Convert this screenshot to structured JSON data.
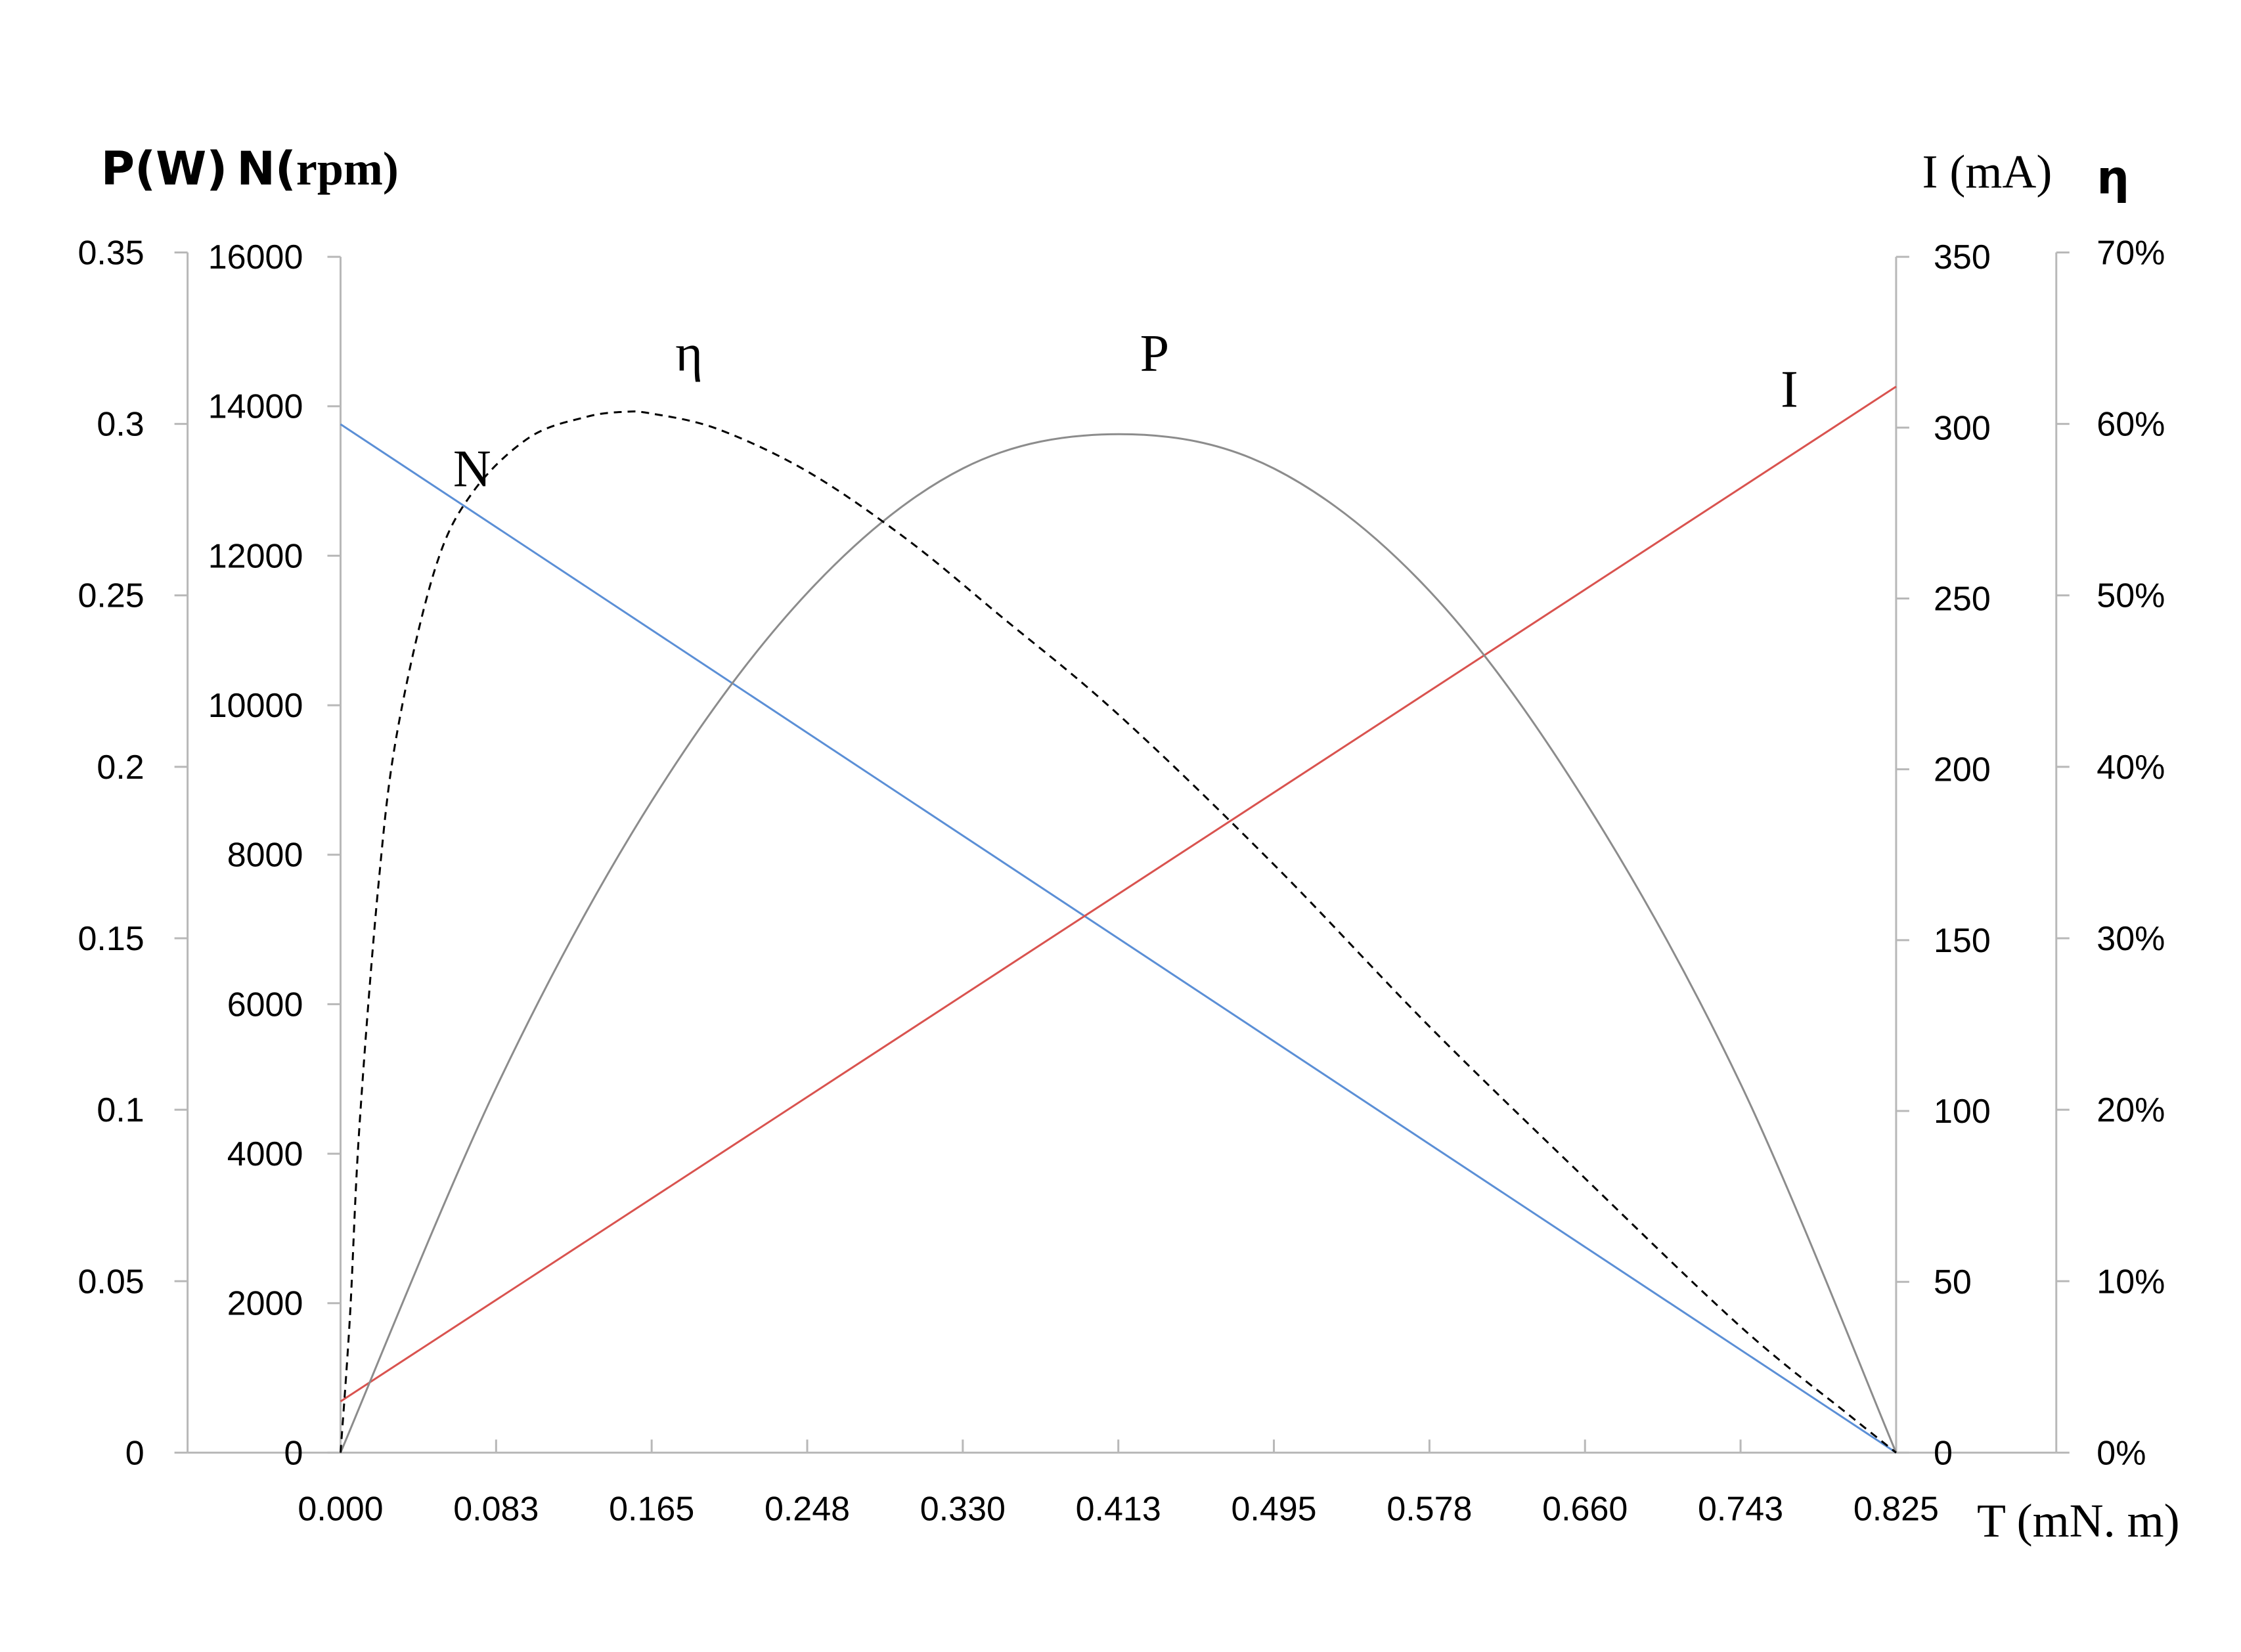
{
  "chart_data": {
    "type": "line",
    "top_partial_text": "...",
    "x_axis": {
      "label": "T (mN. m)",
      "ticks": [
        "0.000",
        "0.083",
        "0.165",
        "0.248",
        "0.330",
        "0.413",
        "0.495",
        "0.578",
        "0.660",
        "0.743",
        "0.825"
      ],
      "range": [
        0,
        0.825
      ]
    },
    "axes": {
      "power": {
        "label": "P(W)",
        "side": "left-outer",
        "range": [
          0,
          0.35
        ],
        "ticks": [
          "0.35",
          "0.3",
          "0.25",
          "0.2",
          "0.15",
          "0.1",
          "0.05",
          "0"
        ]
      },
      "speed": {
        "label_bold": "N(",
        "label_serif": "rpm)",
        "side": "left-inner",
        "range": [
          0,
          16000
        ],
        "ticks": [
          "16000",
          "14000",
          "12000",
          "10000",
          "8000",
          "6000",
          "4000",
          "2000",
          "0"
        ]
      },
      "current": {
        "label": "I (mA)",
        "side": "right-inner",
        "range": [
          0,
          350
        ],
        "ticks": [
          "350",
          "300",
          "250",
          "200",
          "150",
          "100",
          "50",
          "0"
        ]
      },
      "efficiency": {
        "label": "η",
        "side": "right-outer",
        "range": [
          0,
          0.7
        ],
        "ticks": [
          "70%",
          "60%",
          "50%",
          "40%",
          "30%",
          "20%",
          "10%",
          "0%"
        ]
      }
    },
    "series": [
      {
        "name": "N",
        "axis": "speed",
        "color": "#5b8fd6",
        "style": "solid",
        "x": [
          0,
          0.825
        ],
        "y": [
          13760,
          0
        ]
      },
      {
        "name": "I",
        "axis": "current",
        "color": "#d9534f",
        "style": "solid",
        "x": [
          0,
          0.825
        ],
        "y": [
          15,
          312
        ]
      },
      {
        "name": "P",
        "axis": "power",
        "color": "#8c8c8c",
        "style": "solid",
        "x": [
          0,
          0.083,
          0.165,
          0.248,
          0.33,
          0.413,
          0.495,
          0.578,
          0.66,
          0.743,
          0.825
        ],
        "y": [
          0,
          0.107,
          0.19,
          0.251,
          0.287,
          0.297,
          0.287,
          0.251,
          0.19,
          0.107,
          0
        ]
      },
      {
        "name": "η",
        "axis": "efficiency",
        "color": "#000000",
        "style": "dashed",
        "x": [
          0,
          0.005,
          0.01,
          0.02,
          0.03,
          0.05,
          0.07,
          0.1,
          0.13,
          0.15,
          0.165,
          0.2,
          0.248,
          0.3,
          0.35,
          0.413,
          0.495,
          0.578,
          0.66,
          0.743,
          0.8,
          0.825
        ],
        "y": [
          0,
          0.08,
          0.19,
          0.33,
          0.42,
          0.515,
          0.56,
          0.592,
          0.604,
          0.607,
          0.606,
          0.597,
          0.572,
          0.533,
          0.488,
          0.43,
          0.343,
          0.248,
          0.16,
          0.073,
          0.022,
          0
        ]
      }
    ],
    "grid": false,
    "legend": "labels placed next to curves"
  }
}
